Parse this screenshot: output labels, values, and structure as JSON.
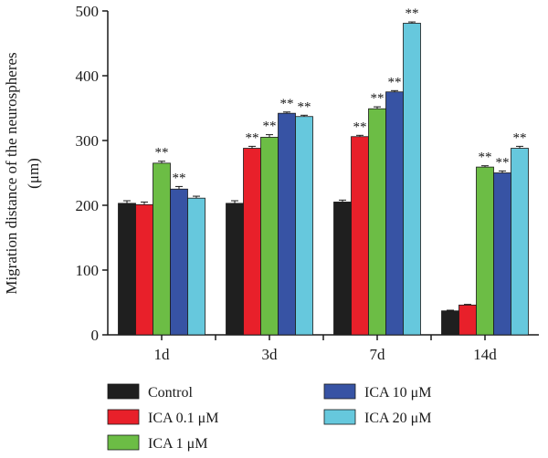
{
  "chart_data": {
    "type": "bar",
    "title": "",
    "xlabel": "",
    "ylabel": "Migration distance of the neurospheres",
    "ylabel_unit": "(μm)",
    "ylim": [
      0,
      500
    ],
    "yticks": [
      0,
      100,
      200,
      300,
      400,
      500
    ],
    "categories": [
      "1d",
      "3d",
      "7d",
      "14d"
    ],
    "series": [
      {
        "name": "Control",
        "color": "#1f1f1f",
        "values": [
          203,
          203,
          205,
          37
        ],
        "errors": [
          4,
          4,
          3,
          1
        ],
        "significance": [
          "",
          "",
          "",
          ""
        ]
      },
      {
        "name": "ICA 0.1 μM",
        "color": "#e8202a",
        "values": [
          201,
          288,
          306,
          46
        ],
        "errors": [
          4,
          3,
          2,
          1
        ],
        "significance": [
          "",
          "**",
          "**",
          ""
        ]
      },
      {
        "name": "ICA 1 μM",
        "color": "#6cbd45",
        "values": [
          265,
          305,
          349,
          259
        ],
        "errors": [
          3,
          4,
          3,
          2
        ],
        "significance": [
          "**",
          "**",
          "**",
          "**"
        ]
      },
      {
        "name": "ICA 10 μM",
        "color": "#3753a4",
        "values": [
          225,
          342,
          375,
          250
        ],
        "errors": [
          4,
          2,
          2,
          3
        ],
        "significance": [
          "**",
          "**",
          "**",
          "**"
        ]
      },
      {
        "name": "ICA 20 μM",
        "color": "#66c8dd",
        "values": [
          211,
          337,
          481,
          288
        ],
        "errors": [
          3,
          2,
          2,
          3
        ],
        "significance": [
          "",
          "**",
          "**",
          "**"
        ]
      }
    ],
    "legend_position": "bottom",
    "grid": false
  }
}
